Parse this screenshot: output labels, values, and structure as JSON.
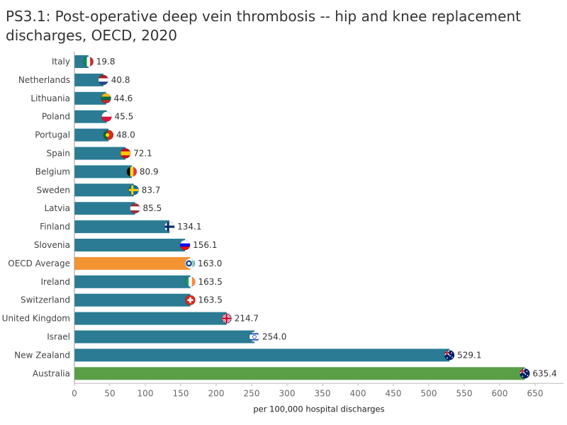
{
  "chart_data": {
    "type": "bar",
    "orientation": "horizontal",
    "title": "PS3.1: Post-operative deep vein thrombosis -- hip and knee replacement discharges, OECD, 2020",
    "xlabel": "per 100,000 hospital discharges",
    "xlim": [
      0,
      650
    ],
    "xticks": [
      0,
      50,
      100,
      150,
      200,
      250,
      300,
      350,
      400,
      450,
      500,
      550,
      600,
      650
    ],
    "grid": false,
    "categories": [
      "Italy",
      "Netherlands",
      "Lithuania",
      "Poland",
      "Portugal",
      "Spain",
      "Belgium",
      "Sweden",
      "Latvia",
      "Finland",
      "Slovenia",
      "OECD Average",
      "Ireland",
      "Switzerland",
      "United Kingdom",
      "Israel",
      "New Zealand",
      "Australia"
    ],
    "values": [
      19.8,
      40.8,
      44.6,
      45.5,
      48.0,
      72.1,
      80.9,
      83.7,
      85.5,
      134.1,
      156.1,
      163.0,
      163.5,
      163.5,
      214.7,
      254.0,
      529.1,
      635.4
    ],
    "value_labels": [
      "19.8",
      "40.8",
      "44.6",
      "45.5",
      "48.0",
      "72.1",
      "80.9",
      "83.7",
      "85.5",
      "134.1",
      "156.1",
      "163.0",
      "163.5",
      "163.5",
      "214.7",
      "254.0",
      "529.1",
      "635.4"
    ],
    "colors": {
      "default": "#2a7b93",
      "OECD Average": "#f39433",
      "Australia": "#5a9e46"
    },
    "flag_icons": [
      "italy-flag-icon",
      "netherlands-flag-icon",
      "lithuania-flag-icon",
      "poland-flag-icon",
      "portugal-flag-icon",
      "spain-flag-icon",
      "belgium-flag-icon",
      "sweden-flag-icon",
      "latvia-flag-icon",
      "finland-flag-icon",
      "slovenia-flag-icon",
      "oecd-logo-icon",
      "ireland-flag-icon",
      "switzerland-flag-icon",
      "united-kingdom-flag-icon",
      "israel-flag-icon",
      "new-zealand-flag-icon",
      "australia-flag-icon"
    ]
  }
}
